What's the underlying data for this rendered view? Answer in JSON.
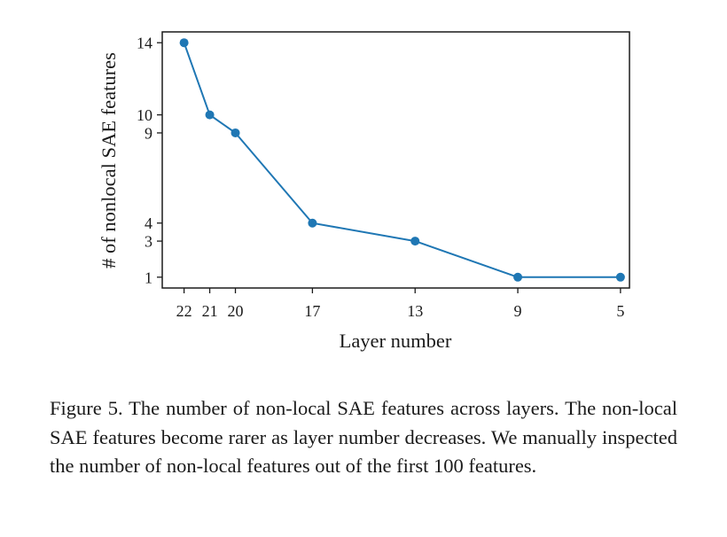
{
  "chart_data": {
    "type": "line",
    "title": "",
    "xlabel": "Layer number",
    "ylabel": "# of nonlocal SAE features",
    "x_ticks": [
      22,
      21,
      20,
      17,
      13,
      9,
      5
    ],
    "y_ticks": [
      14,
      10,
      9,
      4,
      3,
      1
    ],
    "x_axis_inverted": true,
    "xlim": [
      22.85,
      4.65
    ],
    "ylim": [
      0.4,
      14.6
    ],
    "grid": false,
    "legend": "none",
    "series": [
      {
        "x": [
          22,
          21,
          20,
          17,
          13,
          9,
          5
        ],
        "values": [
          14,
          10,
          9,
          4,
          3,
          1,
          1
        ]
      }
    ],
    "colors": {
      "series": "#1f77b4",
      "axes": "#1a1a1a"
    }
  },
  "caption": "Figure 5. The number of non-local SAE features across layers. The non-local SAE features become rarer as layer number decreases. We manually inspected the number of non-local features out of the first 100 features."
}
